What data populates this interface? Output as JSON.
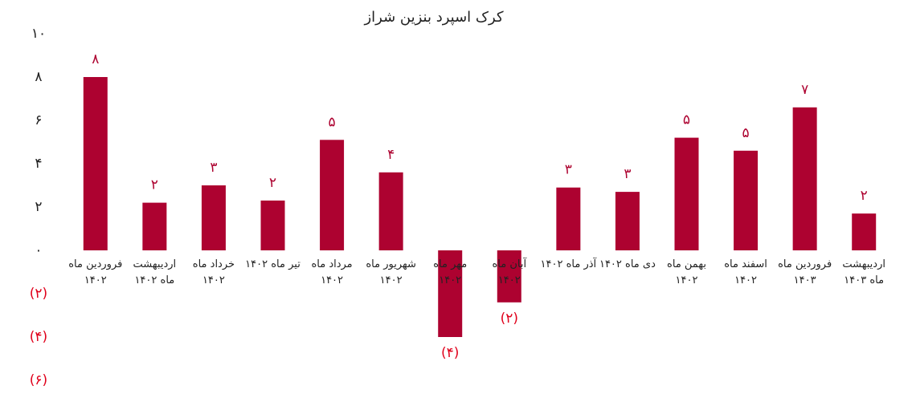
{
  "chart_data": {
    "type": "bar",
    "title": "کرک اسپرد بنزین شراز",
    "categories": [
      "فروردین ماه ۱۴۰۲",
      "اردیبهشت ماه ۱۴۰۲",
      "خرداد ماه ۱۴۰۲",
      "تیر ماه ۱۴۰۲",
      "مرداد ماه ۱۴۰۲",
      "شهریور ماه ۱۴۰۲",
      "مهر ماه ۱۴۰۲",
      "آبان ماه ۱۴۰۲",
      "آذر ماه ۱۴۰۲",
      "دی ماه ۱۴۰۲",
      "بهمن ماه ۱۴۰۲",
      "اسفند ماه ۱۴۰۲",
      "فروردین ماه ۱۴۰۳",
      "اردیبهشت ماه ۱۴۰۳"
    ],
    "values": [
      8.0,
      2.2,
      3.0,
      2.3,
      5.1,
      3.6,
      -4.0,
      -2.4,
      2.9,
      2.7,
      5.2,
      4.6,
      6.6,
      1.7
    ],
    "value_labels": [
      "۸",
      "۲",
      "۳",
      "۲",
      "۵",
      "۴",
      "(۴)",
      "(۲)",
      "۳",
      "۳",
      "۵",
      "۵",
      "۷",
      "۲"
    ],
    "color": "#ad0230",
    "negative_label_color": "#e0001b",
    "ylim": [
      -6,
      10
    ],
    "yticks": [
      {
        "value": -6,
        "label": "(۶)"
      },
      {
        "value": -4,
        "label": "(۴)"
      },
      {
        "value": -2,
        "label": "(۲)"
      },
      {
        "value": 0,
        "label": "۰"
      },
      {
        "value": 2,
        "label": "۲"
      },
      {
        "value": 4,
        "label": "۴"
      },
      {
        "value": 6,
        "label": "۶"
      },
      {
        "value": 8,
        "label": "۸"
      },
      {
        "value": 10,
        "label": "۱۰"
      }
    ],
    "grid": false
  }
}
